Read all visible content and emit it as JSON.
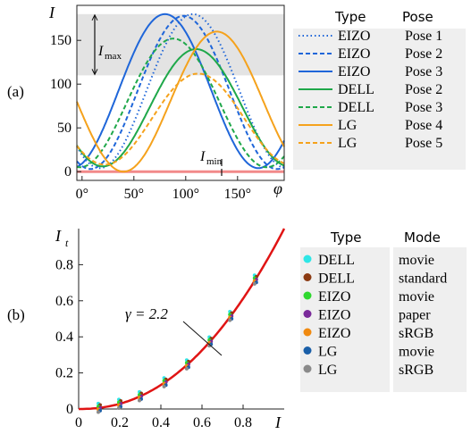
{
  "chart_data": [
    {
      "type": "line",
      "panel_label": "(a)",
      "ylabel": "I",
      "xlabel": "φ",
      "xlim": [
        -5,
        195
      ],
      "ylim": [
        -10,
        190
      ],
      "xticks": [
        0,
        50,
        100,
        150
      ],
      "xtick_labels": [
        "0°",
        "50°",
        "100°",
        "150°"
      ],
      "yticks": [
        0,
        50,
        100,
        150
      ],
      "ytick_labels": [
        "0",
        "50",
        "100",
        "150"
      ],
      "annotations": {
        "imax": "I",
        "imax_sub": "max",
        "imin": "I",
        "imin_sub": "min",
        "shaded_band": [
          110,
          180
        ]
      },
      "baseline": {
        "y": 0,
        "color": "#f28a8a"
      },
      "legend_headers": [
        "Type",
        "Pose"
      ],
      "legend": [
        {
          "type": "EIZO",
          "pose": "Pose 1",
          "color": "#1f66d9",
          "style": "dotted"
        },
        {
          "type": "EIZO",
          "pose": "Pose 2",
          "color": "#1f66d9",
          "style": "dashed"
        },
        {
          "type": "EIZO",
          "pose": "Pose 3",
          "color": "#1f66d9",
          "style": "solid"
        },
        {
          "type": "DELL",
          "pose": "Pose 2",
          "color": "#1fa84a",
          "style": "solid"
        },
        {
          "type": "DELL",
          "pose": "Pose 3",
          "color": "#1fa84a",
          "style": "dashed"
        },
        {
          "type": "LG",
          "pose": "Pose 4",
          "color": "#f5a21c",
          "style": "solid"
        },
        {
          "type": "LG",
          "pose": "Pose 5",
          "color": "#f5a21c",
          "style": "dashed"
        }
      ],
      "series": [
        {
          "peak_x": 107,
          "amplitude": 180,
          "min": 4
        },
        {
          "peak_x": 98,
          "amplitude": 178,
          "min": 3
        },
        {
          "peak_x": 80,
          "amplitude": 180,
          "min": 4
        },
        {
          "peak_x": 110,
          "amplitude": 140,
          "min": 6
        },
        {
          "peak_x": 88,
          "amplitude": 152,
          "min": 5
        },
        {
          "peak_x": 130,
          "amplitude": 160,
          "min": 0
        },
        {
          "peak_x": 112,
          "amplitude": 112,
          "min": 8
        }
      ]
    },
    {
      "type": "scatter",
      "panel_label": "(b)",
      "ylabel": "I",
      "ylabel_sub": "t",
      "xlabel": "I",
      "xlim": [
        0,
        1
      ],
      "ylim": [
        0,
        1
      ],
      "xticks": [
        0,
        0.2,
        0.4,
        0.6,
        0.8
      ],
      "xtick_labels": [
        "0",
        "0.2",
        "0.4",
        "0.6",
        "0.8"
      ],
      "yticks": [
        0,
        0.2,
        0.4,
        0.6,
        0.8
      ],
      "ytick_labels": [
        "0",
        "0.2",
        "0.4",
        "0.6",
        "0.8"
      ],
      "curve": {
        "gamma": 2.2,
        "label": "γ = 2.2",
        "color": "#e01414"
      },
      "x_samples": [
        0.1,
        0.2,
        0.3,
        0.42,
        0.53,
        0.64,
        0.74,
        0.86
      ],
      "legend_headers": [
        "Type",
        "Mode"
      ],
      "legend": [
        {
          "type": "DELL",
          "mode": "movie",
          "color": "#2ee6e6"
        },
        {
          "type": "DELL",
          "mode": "standard",
          "color": "#8b3a12"
        },
        {
          "type": "EIZO",
          "mode": "movie",
          "color": "#2ed82e"
        },
        {
          "type": "EIZO",
          "mode": "paper",
          "color": "#7a2a9a"
        },
        {
          "type": "EIZO",
          "mode": "sRGB",
          "color": "#f08a10"
        },
        {
          "type": "LG",
          "mode": "movie",
          "color": "#1a5fa8"
        },
        {
          "type": "LG",
          "mode": "sRGB",
          "color": "#8a8a8a"
        }
      ]
    }
  ]
}
